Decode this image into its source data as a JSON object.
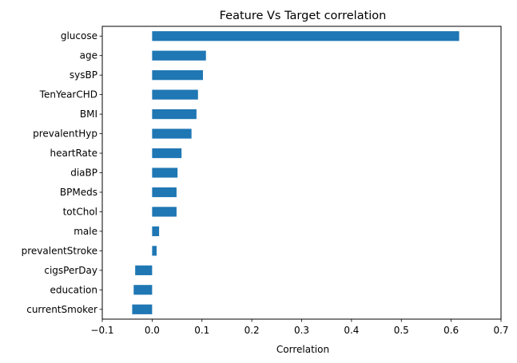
{
  "chart_data": {
    "type": "bar",
    "orientation": "horizontal",
    "title": "Feature Vs Target correlation",
    "xlabel": "Correlation",
    "ylabel": "",
    "xlim": [
      -0.1,
      0.7
    ],
    "xticks": [
      -0.1,
      0.0,
      0.1,
      0.2,
      0.3,
      0.4,
      0.5,
      0.6,
      0.7
    ],
    "xtick_labels": [
      "−0.1",
      "0.0",
      "0.1",
      "0.2",
      "0.3",
      "0.4",
      "0.5",
      "0.6",
      "0.7"
    ],
    "grid": false,
    "bar_color": "#1f77b4",
    "categories": [
      "glucose",
      "age",
      "sysBP",
      "TenYearCHD",
      "BMI",
      "prevalentHyp",
      "heartRate",
      "diaBP",
      "BPMeds",
      "totChol",
      "male",
      "prevalentStroke",
      "cigsPerDay",
      "education",
      "currentSmoker"
    ],
    "values": [
      0.616,
      0.108,
      0.102,
      0.092,
      0.089,
      0.079,
      0.059,
      0.051,
      0.049,
      0.049,
      0.014,
      0.009,
      -0.034,
      -0.037,
      -0.04
    ]
  }
}
